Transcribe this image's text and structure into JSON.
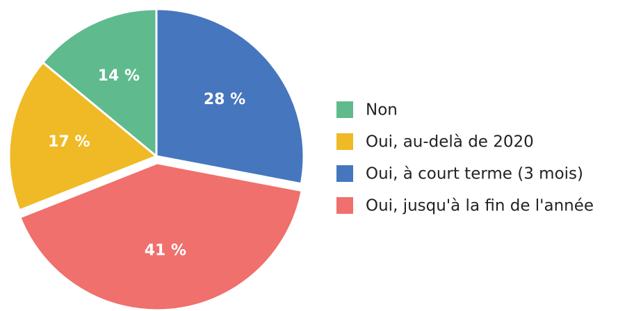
{
  "chart_data": {
    "type": "pie",
    "categories": [
      "Oui, à court terme (3 mois)",
      "Oui, jusqu'à la fin de l'année",
      "Oui, au-delà de 2020",
      "Non"
    ],
    "values": [
      28,
      41,
      17,
      14
    ],
    "value_labels": [
      "28 %",
      "41 %",
      "17 %",
      "14 %"
    ],
    "colors": [
      "#4676be",
      "#ef706c",
      "#efba25",
      "#5fba8d"
    ]
  }
}
